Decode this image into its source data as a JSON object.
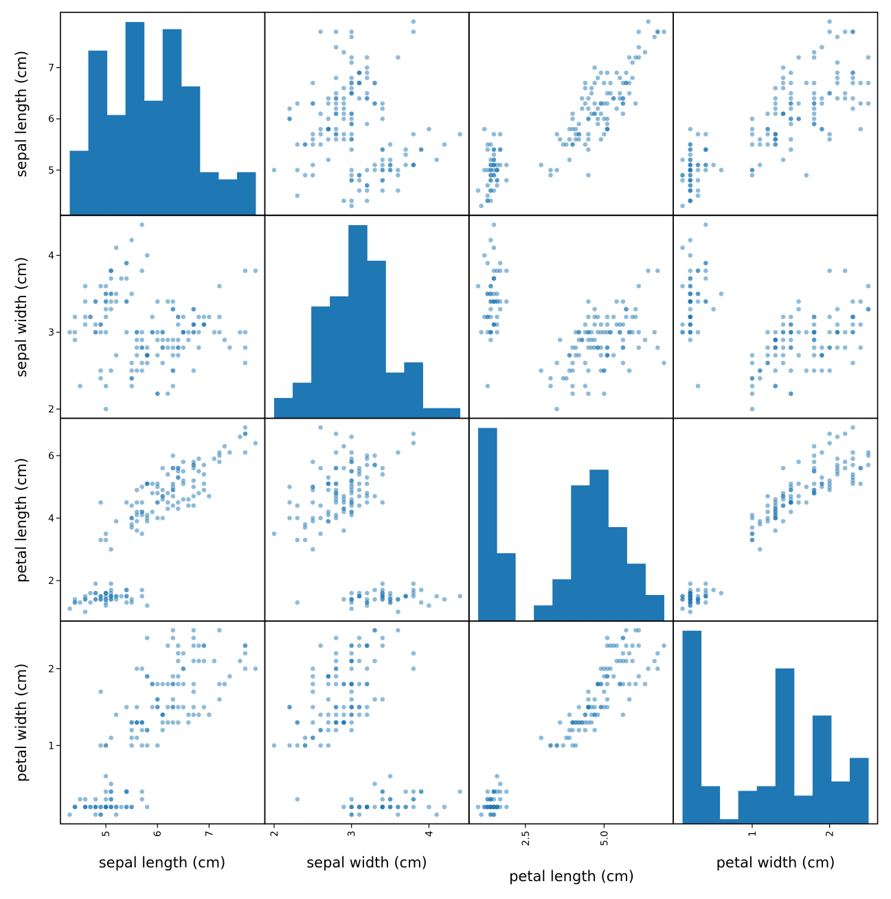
{
  "chart_data": {
    "type": "scatter",
    "subtype": "scatter_matrix",
    "grid": false,
    "legend": "none",
    "color": "#1f77b4",
    "variables": [
      "sepal length (cm)",
      "sepal width (cm)",
      "petal length (cm)",
      "petal width (cm)"
    ],
    "ranges": [
      [
        4.3,
        7.9
      ],
      [
        2.0,
        4.4
      ],
      [
        1.0,
        6.9
      ],
      [
        0.1,
        2.5
      ]
    ],
    "y_ticks_left": [
      {
        "var": 0,
        "values": [
          5,
          6,
          7
        ],
        "labels": [
          "5",
          "6",
          "7"
        ]
      },
      {
        "var": 1,
        "values": [
          2,
          3,
          4
        ],
        "labels": [
          "2",
          "3",
          "4"
        ]
      },
      {
        "var": 2,
        "values": [
          2,
          4,
          6
        ],
        "labels": [
          "2",
          "4",
          "6"
        ]
      },
      {
        "var": 3,
        "values": [
          1,
          2
        ],
        "labels": [
          "1",
          "2"
        ]
      }
    ],
    "x_ticks_bottom": [
      {
        "var": 0,
        "values": [
          5,
          6,
          7
        ],
        "labels": [
          "5",
          "6",
          "7"
        ]
      },
      {
        "var": 1,
        "values": [
          2,
          3,
          4
        ],
        "labels": [
          "2",
          "3",
          "4"
        ]
      },
      {
        "var": 2,
        "values": [
          2.5,
          5.0
        ],
        "labels": [
          "2.5",
          "5.0"
        ]
      },
      {
        "var": 3,
        "values": [
          1,
          2
        ],
        "labels": [
          "1",
          "2"
        ]
      }
    ],
    "histograms": [
      {
        "var": 0,
        "edges": [
          4.3,
          4.66,
          5.02,
          5.38,
          5.74,
          6.1,
          6.46,
          6.82,
          7.18,
          7.54,
          7.9
        ],
        "counts": [
          9,
          23,
          14,
          27,
          16,
          26,
          18,
          6,
          5,
          6
        ]
      },
      {
        "var": 1,
        "edges": [
          2.0,
          2.24,
          2.48,
          2.72,
          2.96,
          3.2,
          3.44,
          3.68,
          3.92,
          4.16,
          4.4
        ],
        "counts": [
          4,
          7,
          22,
          24,
          38,
          31,
          9,
          11,
          2,
          2
        ]
      },
      {
        "var": 2,
        "edges": [
          1.0,
          1.59,
          2.18,
          2.77,
          3.36,
          3.95,
          4.54,
          5.13,
          5.72,
          6.31,
          6.9
        ],
        "counts": [
          37,
          13,
          0,
          3,
          8,
          26,
          29,
          18,
          11,
          5
        ]
      },
      {
        "var": 3,
        "edges": [
          0.1,
          0.34,
          0.58,
          0.82,
          1.06,
          1.3,
          1.54,
          1.78,
          2.02,
          2.26,
          2.5
        ],
        "counts": [
          41,
          8,
          1,
          7,
          8,
          33,
          6,
          23,
          9,
          14
        ]
      }
    ],
    "records": [
      [
        5.1,
        3.5,
        1.4,
        0.2
      ],
      [
        4.9,
        3.0,
        1.4,
        0.2
      ],
      [
        4.7,
        3.2,
        1.3,
        0.2
      ],
      [
        4.6,
        3.1,
        1.5,
        0.2
      ],
      [
        5.0,
        3.6,
        1.4,
        0.2
      ],
      [
        5.4,
        3.9,
        1.7,
        0.4
      ],
      [
        4.6,
        3.4,
        1.4,
        0.3
      ],
      [
        5.0,
        3.4,
        1.5,
        0.2
      ],
      [
        4.4,
        2.9,
        1.4,
        0.2
      ],
      [
        4.9,
        3.1,
        1.5,
        0.1
      ],
      [
        5.4,
        3.7,
        1.5,
        0.2
      ],
      [
        4.8,
        3.4,
        1.6,
        0.2
      ],
      [
        4.8,
        3.0,
        1.4,
        0.1
      ],
      [
        4.3,
        3.0,
        1.1,
        0.1
      ],
      [
        5.8,
        4.0,
        1.2,
        0.2
      ],
      [
        5.7,
        4.4,
        1.5,
        0.4
      ],
      [
        5.4,
        3.9,
        1.3,
        0.4
      ],
      [
        5.1,
        3.5,
        1.4,
        0.3
      ],
      [
        5.7,
        3.8,
        1.7,
        0.3
      ],
      [
        5.1,
        3.8,
        1.5,
        0.3
      ],
      [
        5.4,
        3.4,
        1.7,
        0.2
      ],
      [
        5.1,
        3.7,
        1.5,
        0.4
      ],
      [
        4.6,
        3.6,
        1.0,
        0.2
      ],
      [
        5.1,
        3.3,
        1.7,
        0.5
      ],
      [
        4.8,
        3.4,
        1.9,
        0.2
      ],
      [
        5.0,
        3.0,
        1.6,
        0.2
      ],
      [
        5.0,
        3.4,
        1.6,
        0.4
      ],
      [
        5.2,
        3.5,
        1.5,
        0.2
      ],
      [
        5.2,
        3.4,
        1.4,
        0.2
      ],
      [
        4.7,
        3.2,
        1.6,
        0.2
      ],
      [
        4.8,
        3.1,
        1.6,
        0.2
      ],
      [
        5.4,
        3.4,
        1.5,
        0.4
      ],
      [
        5.2,
        4.1,
        1.5,
        0.1
      ],
      [
        5.5,
        4.2,
        1.4,
        0.2
      ],
      [
        4.9,
        3.1,
        1.5,
        0.2
      ],
      [
        5.0,
        3.2,
        1.2,
        0.2
      ],
      [
        5.5,
        3.5,
        1.3,
        0.2
      ],
      [
        4.9,
        3.6,
        1.4,
        0.1
      ],
      [
        4.4,
        3.0,
        1.3,
        0.2
      ],
      [
        5.1,
        3.4,
        1.5,
        0.2
      ],
      [
        5.0,
        3.5,
        1.3,
        0.3
      ],
      [
        4.5,
        2.3,
        1.3,
        0.3
      ],
      [
        4.4,
        3.2,
        1.3,
        0.2
      ],
      [
        5.0,
        3.5,
        1.6,
        0.6
      ],
      [
        5.1,
        3.8,
        1.9,
        0.4
      ],
      [
        4.8,
        3.0,
        1.4,
        0.3
      ],
      [
        5.1,
        3.8,
        1.6,
        0.2
      ],
      [
        4.6,
        3.2,
        1.4,
        0.2
      ],
      [
        5.3,
        3.7,
        1.5,
        0.2
      ],
      [
        5.0,
        3.3,
        1.4,
        0.2
      ],
      [
        7.0,
        3.2,
        4.7,
        1.4
      ],
      [
        6.4,
        3.2,
        4.5,
        1.5
      ],
      [
        6.9,
        3.1,
        4.9,
        1.5
      ],
      [
        5.5,
        2.3,
        4.0,
        1.3
      ],
      [
        6.5,
        2.8,
        4.6,
        1.5
      ],
      [
        5.7,
        2.8,
        4.5,
        1.3
      ],
      [
        6.3,
        3.3,
        4.7,
        1.6
      ],
      [
        4.9,
        2.4,
        3.3,
        1.0
      ],
      [
        6.6,
        2.9,
        4.6,
        1.3
      ],
      [
        5.2,
        2.7,
        3.9,
        1.4
      ],
      [
        5.0,
        2.0,
        3.5,
        1.0
      ],
      [
        5.9,
        3.0,
        4.2,
        1.5
      ],
      [
        6.0,
        2.2,
        4.0,
        1.0
      ],
      [
        6.1,
        2.9,
        4.7,
        1.4
      ],
      [
        5.6,
        2.9,
        3.6,
        1.3
      ],
      [
        6.7,
        3.1,
        4.4,
        1.4
      ],
      [
        5.6,
        3.0,
        4.5,
        1.5
      ],
      [
        5.8,
        2.7,
        4.1,
        1.0
      ],
      [
        6.2,
        2.2,
        4.5,
        1.5
      ],
      [
        5.6,
        2.5,
        3.9,
        1.1
      ],
      [
        5.9,
        3.2,
        4.8,
        1.8
      ],
      [
        6.1,
        2.8,
        4.0,
        1.3
      ],
      [
        6.3,
        2.5,
        4.9,
        1.5
      ],
      [
        6.1,
        2.8,
        4.7,
        1.2
      ],
      [
        6.4,
        2.9,
        4.3,
        1.3
      ],
      [
        6.6,
        3.0,
        4.4,
        1.4
      ],
      [
        6.8,
        2.8,
        4.8,
        1.4
      ],
      [
        6.7,
        3.0,
        5.0,
        1.7
      ],
      [
        6.0,
        2.9,
        4.5,
        1.5
      ],
      [
        5.7,
        2.6,
        3.5,
        1.0
      ],
      [
        5.5,
        2.4,
        3.8,
        1.1
      ],
      [
        5.5,
        2.4,
        3.7,
        1.0
      ],
      [
        5.8,
        2.7,
        3.9,
        1.2
      ],
      [
        6.0,
        2.7,
        5.1,
        1.6
      ],
      [
        5.4,
        3.0,
        4.5,
        1.5
      ],
      [
        6.0,
        3.4,
        4.5,
        1.6
      ],
      [
        6.7,
        3.1,
        4.7,
        1.5
      ],
      [
        6.3,
        2.3,
        4.4,
        1.3
      ],
      [
        5.6,
        3.0,
        4.1,
        1.3
      ],
      [
        5.5,
        2.5,
        4.0,
        1.3
      ],
      [
        5.5,
        2.6,
        4.4,
        1.2
      ],
      [
        6.1,
        3.0,
        4.6,
        1.4
      ],
      [
        5.8,
        2.6,
        4.0,
        1.2
      ],
      [
        5.0,
        2.3,
        3.3,
        1.0
      ],
      [
        5.6,
        2.7,
        4.2,
        1.3
      ],
      [
        5.7,
        3.0,
        4.2,
        1.2
      ],
      [
        5.7,
        2.9,
        4.2,
        1.3
      ],
      [
        6.2,
        2.9,
        4.3,
        1.3
      ],
      [
        5.1,
        2.5,
        3.0,
        1.1
      ],
      [
        5.7,
        2.8,
        4.1,
        1.3
      ],
      [
        6.3,
        3.3,
        6.0,
        2.5
      ],
      [
        5.8,
        2.7,
        5.1,
        1.9
      ],
      [
        7.1,
        3.0,
        5.9,
        2.1
      ],
      [
        6.3,
        2.9,
        5.6,
        1.8
      ],
      [
        6.5,
        3.0,
        5.8,
        2.2
      ],
      [
        7.6,
        3.0,
        6.6,
        2.1
      ],
      [
        4.9,
        2.5,
        4.5,
        1.7
      ],
      [
        7.3,
        2.9,
        6.3,
        1.8
      ],
      [
        6.7,
        2.5,
        5.8,
        1.8
      ],
      [
        7.2,
        3.6,
        6.1,
        2.5
      ],
      [
        6.5,
        3.2,
        5.1,
        2.0
      ],
      [
        6.4,
        2.7,
        5.3,
        1.9
      ],
      [
        6.8,
        3.0,
        5.5,
        2.1
      ],
      [
        5.7,
        2.5,
        5.0,
        2.0
      ],
      [
        5.8,
        2.8,
        5.1,
        2.4
      ],
      [
        6.4,
        3.2,
        5.3,
        2.3
      ],
      [
        6.5,
        3.0,
        5.5,
        1.8
      ],
      [
        7.7,
        3.8,
        6.7,
        2.2
      ],
      [
        7.7,
        2.6,
        6.9,
        2.3
      ],
      [
        6.0,
        2.2,
        5.0,
        1.5
      ],
      [
        6.9,
        3.2,
        5.7,
        2.3
      ],
      [
        5.6,
        2.8,
        4.9,
        2.0
      ],
      [
        7.7,
        2.8,
        6.7,
        2.0
      ],
      [
        6.3,
        2.7,
        4.9,
        1.8
      ],
      [
        6.7,
        3.3,
        5.7,
        2.1
      ],
      [
        7.2,
        3.2,
        6.0,
        1.8
      ],
      [
        6.2,
        2.8,
        4.8,
        1.8
      ],
      [
        6.1,
        3.0,
        4.9,
        1.8
      ],
      [
        6.4,
        2.8,
        5.6,
        2.1
      ],
      [
        7.2,
        3.0,
        5.8,
        1.6
      ],
      [
        7.4,
        2.8,
        6.1,
        1.9
      ],
      [
        7.9,
        3.8,
        6.4,
        2.0
      ],
      [
        6.4,
        2.8,
        5.6,
        2.2
      ],
      [
        6.3,
        2.8,
        5.1,
        1.5
      ],
      [
        6.1,
        2.6,
        5.6,
        1.4
      ],
      [
        7.7,
        3.0,
        6.1,
        2.3
      ],
      [
        6.3,
        3.4,
        5.6,
        2.4
      ],
      [
        6.4,
        3.1,
        5.5,
        1.8
      ],
      [
        6.0,
        3.0,
        4.8,
        1.8
      ],
      [
        6.9,
        3.1,
        5.4,
        2.1
      ],
      [
        6.7,
        3.1,
        5.6,
        2.4
      ],
      [
        6.9,
        3.1,
        5.1,
        2.3
      ],
      [
        5.8,
        2.7,
        5.1,
        1.9
      ],
      [
        6.8,
        3.2,
        5.9,
        2.3
      ],
      [
        6.7,
        3.3,
        5.7,
        2.5
      ],
      [
        6.7,
        3.0,
        5.2,
        2.3
      ],
      [
        6.3,
        2.5,
        5.0,
        1.9
      ],
      [
        6.5,
        3.0,
        5.2,
        2.0
      ],
      [
        6.2,
        3.4,
        5.4,
        2.3
      ],
      [
        5.9,
        3.0,
        5.1,
        1.8
      ]
    ]
  }
}
